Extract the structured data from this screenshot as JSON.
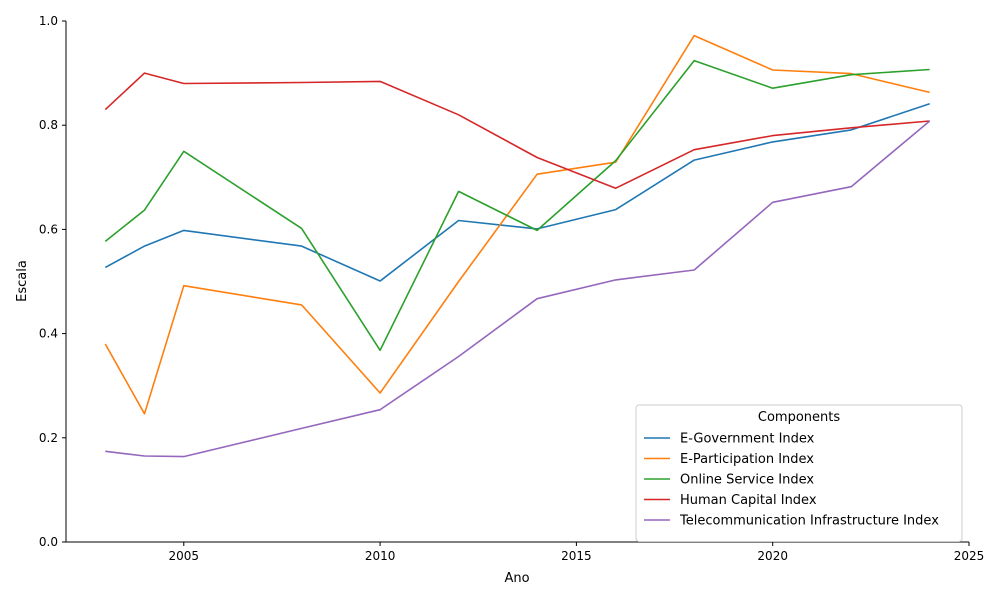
{
  "chart_data": {
    "type": "line",
    "title": "",
    "xlabel": "Ano",
    "ylabel": "Escala",
    "xlim": [
      2002,
      2025
    ],
    "ylim": [
      0,
      1.0
    ],
    "xticks": [
      2005,
      2010,
      2015,
      2020,
      2025
    ],
    "yticks": [
      0.0,
      0.2,
      0.4,
      0.6,
      0.8,
      1.0
    ],
    "xtick_labels": [
      "2005",
      "2010",
      "2015",
      "2020",
      "2025"
    ],
    "ytick_labels": [
      "0.0",
      "0.2",
      "0.4",
      "0.6",
      "0.8",
      "1.0"
    ],
    "grid": false,
    "legend": {
      "title": "Components",
      "placement": "lower-right"
    },
    "x": [
      2003,
      2004,
      2005,
      2008,
      2010,
      2012,
      2014,
      2016,
      2018,
      2020,
      2022,
      2024
    ],
    "series": [
      {
        "name": "E-Government Index",
        "color": "#1f77b4",
        "values": [
          0.527,
          0.568,
          0.598,
          0.568,
          0.501,
          0.617,
          0.601,
          0.638,
          0.733,
          0.768,
          0.791,
          0.841
        ]
      },
      {
        "name": "E-Participation Index",
        "color": "#ff7f0e",
        "values": [
          0.38,
          0.246,
          0.492,
          0.455,
          0.286,
          0.5,
          0.706,
          0.729,
          0.972,
          0.906,
          0.899,
          0.863
        ]
      },
      {
        "name": "Online Service Index",
        "color": "#2ca02c",
        "values": [
          0.577,
          0.637,
          0.75,
          0.602,
          0.368,
          0.673,
          0.598,
          0.732,
          0.924,
          0.871,
          0.897,
          0.907
        ]
      },
      {
        "name": "Human Capital Index",
        "color": "#d62728",
        "values": [
          0.83,
          0.9,
          0.88,
          0.882,
          0.884,
          0.82,
          0.738,
          0.679,
          0.753,
          0.78,
          0.795,
          0.808
        ]
      },
      {
        "name": "Telecommunication Infrastructure Index",
        "color": "#9467bd",
        "values": [
          0.174,
          0.165,
          0.164,
          0.218,
          0.254,
          0.356,
          0.467,
          0.503,
          0.522,
          0.652,
          0.682,
          0.808
        ]
      }
    ]
  }
}
